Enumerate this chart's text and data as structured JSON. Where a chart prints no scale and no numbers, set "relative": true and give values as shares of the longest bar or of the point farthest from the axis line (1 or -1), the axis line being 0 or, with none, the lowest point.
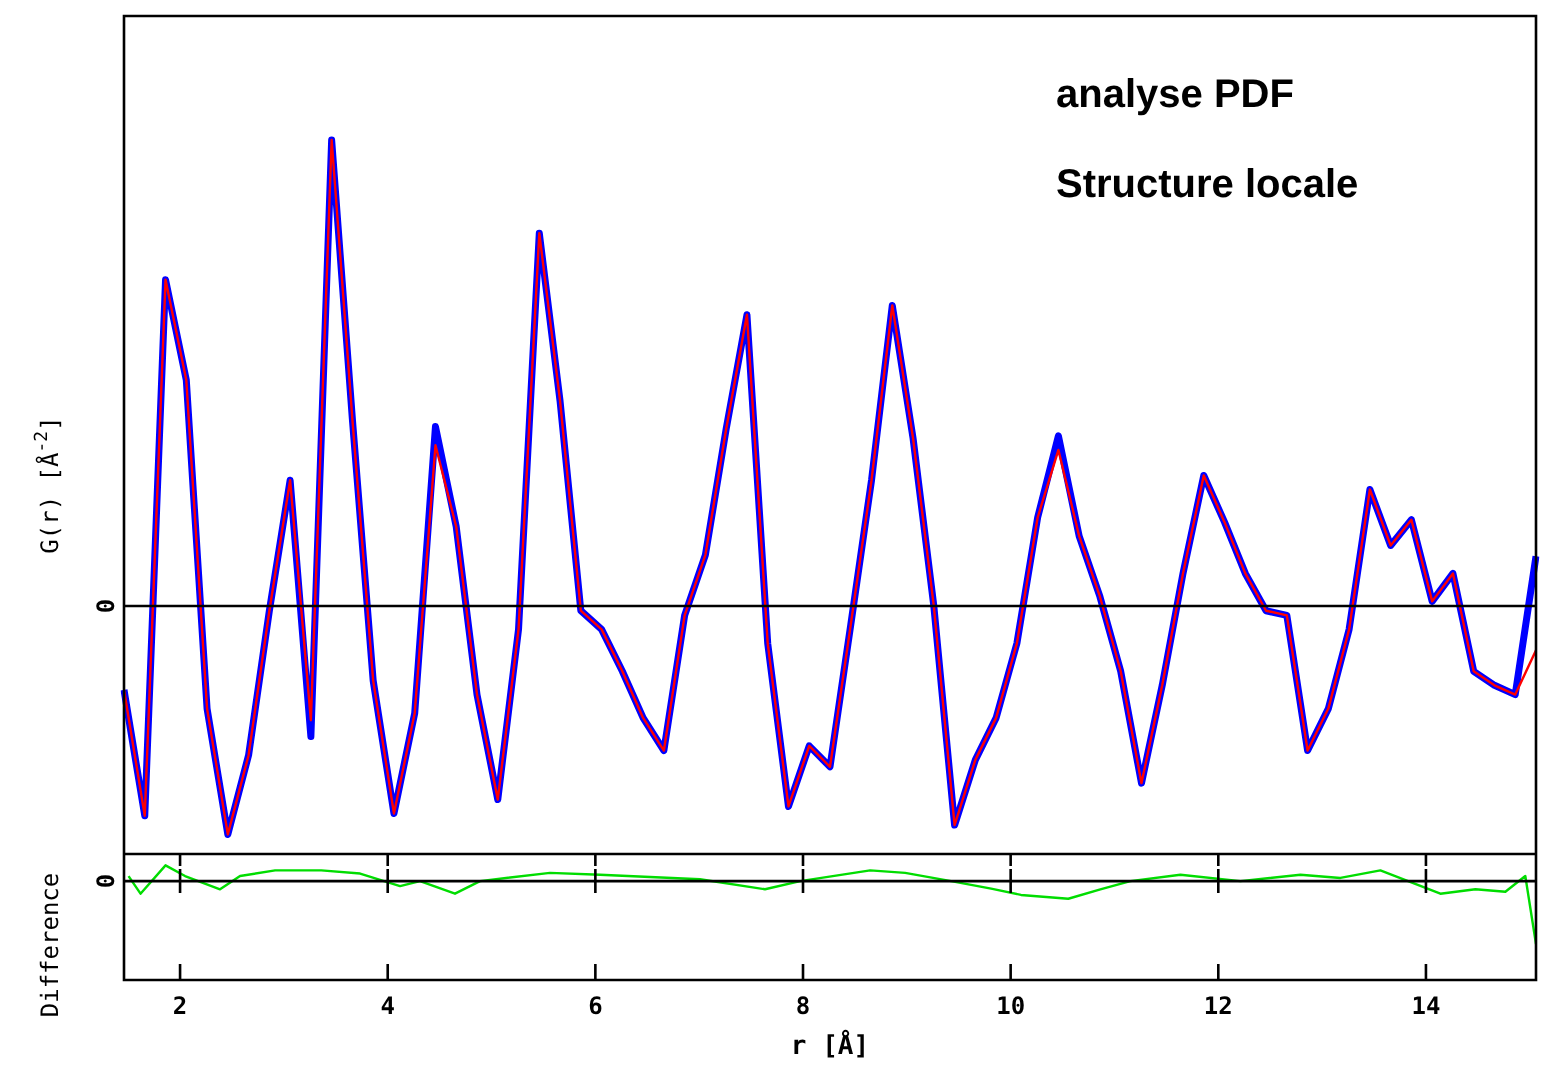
{
  "chart_data": [
    {
      "type": "line",
      "relative": true,
      "ylabel": "G(r) [Å$^{-2}$]",
      "annotations": [
        "analyse PDF",
        "Structure locale"
      ],
      "tick_labels": false,
      "grid": false,
      "legend": false,
      "ref_lines": [
        {
          "axis": "y",
          "value": 0,
          "label": "0"
        }
      ],
      "categories": [
        null,
        null,
        null,
        null,
        null,
        null,
        null,
        null,
        null,
        null,
        null,
        null,
        null,
        null,
        null,
        null,
        null,
        null,
        null,
        null,
        null,
        null,
        null,
        null,
        null,
        null,
        null,
        null,
        null,
        null,
        null,
        null,
        null,
        null,
        null,
        null,
        null,
        null,
        null,
        null,
        null,
        null,
        null,
        null,
        null,
        null,
        null,
        null,
        null,
        null,
        null,
        null,
        null,
        null,
        null,
        null,
        null,
        null,
        null,
        null,
        null,
        null,
        null,
        null,
        null,
        null,
        null,
        null,
        null
      ],
      "series": [
        {
          "color": "#ff0000",
          "values": [
            -0.18,
            -0.45,
            0.7,
            0.485,
            -0.22,
            -0.49,
            -0.32,
            -0.01,
            0.27,
            -0.245,
            1.0,
            0.4,
            -0.16,
            -0.445,
            -0.23,
            0.345,
            0.17,
            -0.19,
            -0.415,
            -0.05,
            0.8,
            0.44,
            -0.01,
            -0.05,
            -0.14,
            -0.24,
            -0.31,
            -0.02,
            0.11,
            0.38,
            0.625,
            -0.08,
            -0.43,
            -0.3,
            -0.345,
            -0.04,
            0.27,
            0.645,
            0.36,
            0,
            -0.47,
            -0.33,
            -0.24,
            -0.08,
            0.19,
            0.335,
            0.15,
            0.02,
            -0.14,
            -0.38,
            -0.17,
            0.07,
            0.28,
            0.18,
            0.07,
            -0.01,
            -0.02,
            -0.31,
            -0.22,
            -0.05,
            0.25,
            0.13,
            0.185,
            0.01,
            0.07,
            -0.14,
            -0.17,
            -0.19,
            -0.095
          ]
        },
        {
          "color": "#0000ff",
          "values": [
            -0.18,
            -0.45,
            0.7,
            0.485,
            -0.22,
            -0.49,
            -0.32,
            -0.01,
            0.27,
            -0.28,
            1.0,
            0.4,
            -0.16,
            -0.445,
            -0.23,
            0.385,
            0.17,
            -0.19,
            -0.415,
            -0.05,
            0.8,
            0.44,
            -0.01,
            -0.05,
            -0.14,
            -0.24,
            -0.31,
            -0.02,
            0.11,
            0.38,
            0.625,
            -0.08,
            -0.43,
            -0.3,
            -0.345,
            -0.04,
            0.27,
            0.645,
            0.36,
            0,
            -0.47,
            -0.33,
            -0.24,
            -0.08,
            0.19,
            0.365,
            0.15,
            0.02,
            -0.14,
            -0.38,
            -0.17,
            0.07,
            0.28,
            0.18,
            0.07,
            -0.01,
            -0.02,
            -0.31,
            -0.22,
            -0.05,
            0.25,
            0.13,
            0.185,
            0.01,
            0.07,
            -0.14,
            -0.17,
            -0.19,
            0.107
          ]
        }
      ]
    },
    {
      "type": "line",
      "relative": true,
      "ylabel": "Difference",
      "xlabel": "r [Å]",
      "xlim": [
        1.46,
        15.06
      ],
      "xticks": [
        2,
        4,
        6,
        8,
        10,
        12,
        14
      ],
      "tick_labels": "x",
      "grid": false,
      "legend": false,
      "ref_lines": [
        {
          "axis": "y",
          "value": 0,
          "label": "0"
        }
      ],
      "x": [
        1.504,
        1.619,
        1.86,
        2.048,
        2.385,
        2.578,
        2.916,
        3.36,
        3.734,
        4.119,
        4.311,
        4.648,
        4.889,
        5.563,
        6.045,
        7.008,
        7.634,
        7.973,
        8.647,
        8.984,
        9.427,
        9.812,
        10.1,
        10.555,
        10.864,
        11.153,
        11.635,
        12.213,
        12.791,
        13.176,
        13.561,
        14.139,
        14.476,
        14.765,
        14.957,
        15.06
      ],
      "series": [
        {
          "color": "#00dd00",
          "values": [
            0.08,
            -0.2,
            0.25,
            0.08,
            -0.13,
            0.08,
            0.17,
            0.17,
            0.12,
            -0.08,
            0,
            -0.2,
            0,
            0.13,
            0.1,
            0.03,
            -0.13,
            0,
            0.17,
            0.13,
            0,
            -0.12,
            -0.22,
            -0.28,
            -0.13,
            0,
            0.1,
            0,
            0.1,
            0.05,
            0.17,
            -0.2,
            -0.13,
            -0.17,
            0.08,
            -1
          ]
        }
      ]
    }
  ]
}
